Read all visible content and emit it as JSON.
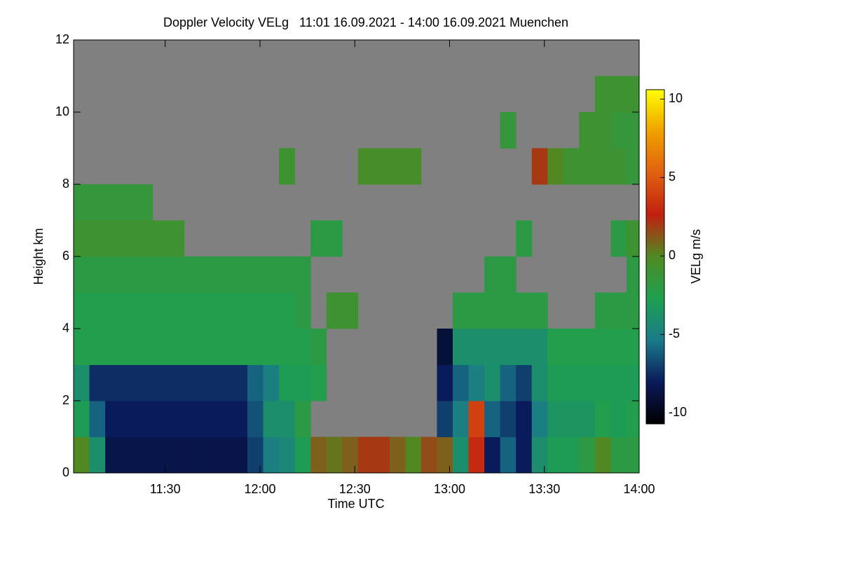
{
  "chart_data": {
    "type": "heatmap",
    "title": "Doppler Velocity VELg   11:01 16.09.2021 - 14:00 16.09.2021 Muenchen",
    "x_label": "Time UTC",
    "y_label": "Height km",
    "colorbar_label": "VELg m/s",
    "background_color": "#808080",
    "colormap": [
      "#000000",
      "#0a1a5a",
      "#1a7a8a",
      "#1fa050",
      "#4f8a22",
      "#c02010",
      "#e06010",
      "#f0a000",
      "#ffff00"
    ],
    "xlim": [
      661,
      840
    ],
    "xticks": [
      {
        "value": 690,
        "label": "11:30"
      },
      {
        "value": 720,
        "label": "12:00"
      },
      {
        "value": 750,
        "label": "12:30"
      },
      {
        "value": 780,
        "label": "13:00"
      },
      {
        "value": 810,
        "label": "13:30"
      },
      {
        "value": 840,
        "label": "14:00"
      }
    ],
    "ylim": [
      0,
      12
    ],
    "yticks": [
      0,
      2,
      4,
      6,
      8,
      10,
      12
    ],
    "zlim": [
      -10.7,
      10.6
    ],
    "zticks": [
      -10,
      -5,
      0,
      5,
      10
    ],
    "x": [
      663.5,
      668.5,
      673.5,
      678.5,
      683.5,
      688.5,
      693.5,
      698.5,
      703.5,
      708.5,
      713.5,
      718.5,
      723.5,
      728.5,
      733.5,
      738.5,
      743.5,
      748.5,
      753.5,
      758.5,
      763.5,
      768.5,
      773.5,
      778.5,
      783.5,
      788.5,
      793.5,
      798.5,
      803.5,
      808.5,
      813.5,
      818.5,
      823.5,
      828.5,
      833.5,
      838.5
    ],
    "y": [
      0.5,
      1.5,
      2.5,
      3.5,
      4.5,
      5.5,
      6.5,
      7.5,
      8.5,
      9.5,
      10.5,
      11.5
    ],
    "z": [
      [
        0,
        -4,
        -8.5,
        -8.5,
        -8.5,
        -8.5,
        -8.5,
        -8.5,
        -8.5,
        -8.5,
        -8.5,
        -7,
        -5,
        -4.5,
        -3,
        1,
        0.5,
        1,
        2,
        2,
        1,
        0,
        1.5,
        1,
        -4,
        3,
        -8,
        -6,
        -8,
        -4,
        -3,
        -3,
        -2,
        0,
        -2,
        -2
      ],
      [
        -3,
        -6,
        -8,
        -8,
        -8,
        -8,
        -8,
        -8,
        -8,
        -8,
        -8,
        -6.5,
        -4,
        -4,
        -2,
        null,
        null,
        null,
        null,
        null,
        null,
        null,
        null,
        -7,
        -5,
        4,
        -6,
        -7,
        -8,
        -5,
        -3.5,
        -3.5,
        -3.5,
        -2.5,
        -3,
        -2.5
      ],
      [
        -4,
        -7.5,
        -7.5,
        -7.5,
        -7.5,
        -7.5,
        -7.5,
        -7.5,
        -7.5,
        -7.5,
        -7.5,
        -6,
        -5,
        -3,
        -3,
        -2.5,
        null,
        null,
        null,
        null,
        null,
        null,
        null,
        -8,
        -6,
        -5,
        -4,
        -6,
        -7,
        -4,
        -3,
        -3,
        -3,
        -3,
        -3,
        -3
      ],
      [
        -2.5,
        -2.5,
        -2.5,
        -2.5,
        -2.5,
        -2.5,
        -2.5,
        -2.5,
        -2.5,
        -2.5,
        -2.5,
        -2.5,
        -2.5,
        -2.5,
        -2.5,
        -2,
        null,
        null,
        null,
        null,
        null,
        null,
        null,
        -9,
        -4,
        -4,
        -4,
        -4,
        -4,
        -4,
        -2.5,
        -2.5,
        -2.5,
        -2.5,
        -2.5,
        -2.5
      ],
      [
        -2.5,
        -2.5,
        -2.5,
        -2.5,
        -2.5,
        -2.5,
        -2.5,
        -2.5,
        -2.5,
        -2.5,
        -2.5,
        -2.5,
        -2.5,
        -2.5,
        -2,
        null,
        -1,
        -1,
        null,
        null,
        null,
        null,
        null,
        null,
        -2,
        -2,
        -2,
        -2,
        -2,
        -2,
        null,
        null,
        null,
        -2,
        -2,
        -2
      ],
      [
        -2,
        -2,
        -2,
        -2,
        -2,
        -2,
        -2,
        -2,
        -2,
        -2,
        -2,
        -2,
        -2,
        -2,
        -2,
        null,
        null,
        null,
        null,
        null,
        null,
        null,
        null,
        null,
        null,
        null,
        -2,
        -2,
        null,
        null,
        null,
        null,
        null,
        null,
        null,
        -2
      ],
      [
        -1,
        -1,
        -1,
        -1,
        -1,
        -1,
        -1,
        null,
        null,
        null,
        null,
        null,
        null,
        null,
        null,
        -2,
        -2,
        null,
        null,
        null,
        null,
        null,
        null,
        null,
        null,
        null,
        null,
        null,
        -2,
        null,
        null,
        null,
        null,
        null,
        -2,
        -1
      ],
      [
        -1.5,
        -1.5,
        -1.5,
        -1.5,
        -1.5,
        null,
        null,
        null,
        null,
        null,
        null,
        null,
        null,
        null,
        null,
        null,
        null,
        null,
        null,
        null,
        null,
        null,
        null,
        null,
        null,
        null,
        null,
        null,
        null,
        null,
        null,
        null,
        null,
        null,
        null,
        null
      ],
      [
        null,
        null,
        null,
        null,
        null,
        null,
        null,
        null,
        null,
        null,
        null,
        null,
        null,
        -1,
        null,
        null,
        null,
        null,
        -0.5,
        -0.5,
        -0.5,
        -0.5,
        null,
        null,
        null,
        null,
        null,
        null,
        null,
        2,
        0,
        -1,
        -1,
        -1,
        -1,
        -1.5
      ],
      [
        null,
        null,
        null,
        null,
        null,
        null,
        null,
        null,
        null,
        null,
        null,
        null,
        null,
        null,
        null,
        null,
        null,
        null,
        null,
        null,
        null,
        null,
        null,
        null,
        null,
        null,
        null,
        -1.5,
        null,
        null,
        null,
        null,
        -1,
        -1,
        -1.5,
        -1.5
      ],
      [
        null,
        null,
        null,
        null,
        null,
        null,
        null,
        null,
        null,
        null,
        null,
        null,
        null,
        null,
        null,
        null,
        null,
        null,
        null,
        null,
        null,
        null,
        null,
        null,
        null,
        null,
        null,
        null,
        null,
        null,
        null,
        null,
        null,
        -1,
        -1,
        -1
      ],
      [
        null,
        null,
        null,
        null,
        null,
        null,
        null,
        null,
        null,
        null,
        null,
        null,
        null,
        null,
        null,
        null,
        null,
        null,
        null,
        null,
        null,
        null,
        null,
        null,
        null,
        null,
        null,
        null,
        null,
        null,
        null,
        null,
        null,
        null,
        null,
        null
      ]
    ]
  }
}
